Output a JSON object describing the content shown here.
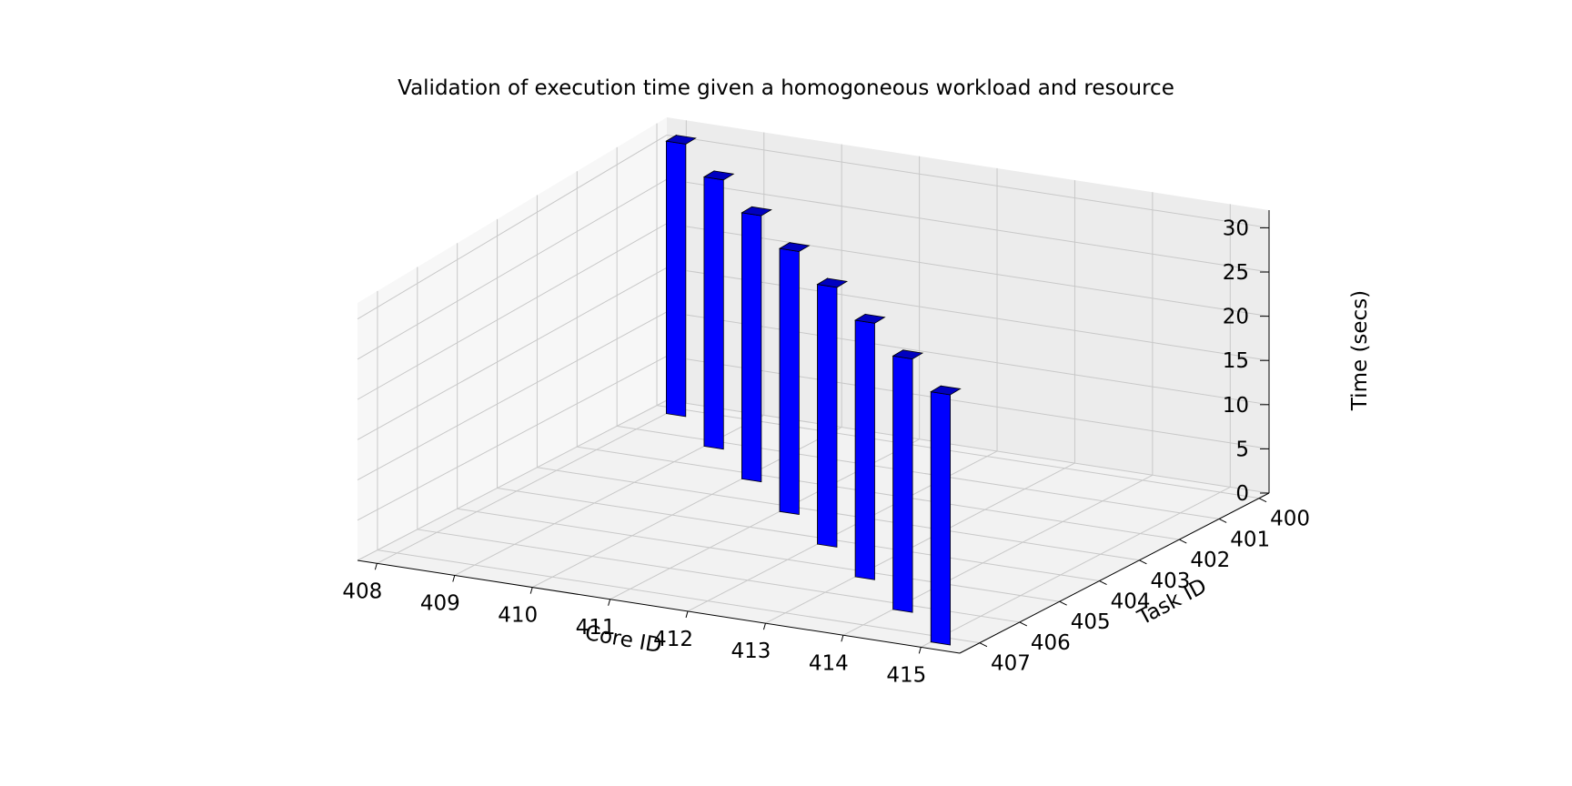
{
  "chart_data": {
    "type": "bar3d",
    "title": "Validation of execution time given a homogoneous workload and resource",
    "xlabel": "Core ID",
    "ylabel": "Task ID",
    "zlabel": "Time (secs)",
    "x_ticks": [
      "408",
      "409",
      "410",
      "411",
      "412",
      "413",
      "414",
      "415"
    ],
    "y_ticks": [
      "400",
      "401",
      "402",
      "403",
      "404",
      "405",
      "406",
      "407"
    ],
    "z_ticks": [
      "0",
      "5",
      "10",
      "15",
      "20",
      "25",
      "30"
    ],
    "zlim": [
      0,
      32
    ],
    "grid": true,
    "bar_color": "#0000ff",
    "bars": [
      {
        "core": 408,
        "task": 400,
        "time": 31
      },
      {
        "core": 409,
        "task": 401,
        "time": 31
      },
      {
        "core": 410,
        "task": 402,
        "time": 31
      },
      {
        "core": 411,
        "task": 403,
        "time": 31
      },
      {
        "core": 412,
        "task": 404,
        "time": 31
      },
      {
        "core": 413,
        "task": 405,
        "time": 31
      },
      {
        "core": 414,
        "task": 406,
        "time": 31
      },
      {
        "core": 415,
        "task": 407,
        "time": 31
      }
    ]
  }
}
